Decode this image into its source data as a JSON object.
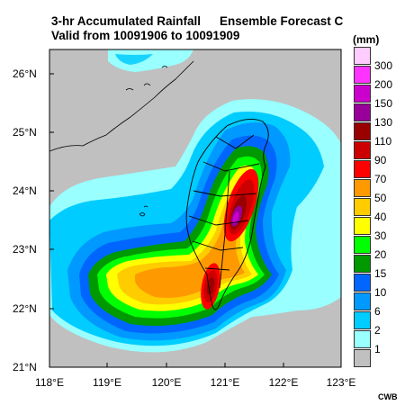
{
  "title": {
    "line1": "3-hr Accumulated Rainfall",
    "line2": "Valid from 10091906 to 10091909",
    "subtitle": "Ensemble Forecast C"
  },
  "map": {
    "region": "Taiwan",
    "lat_range": [
      21,
      26.5
    ],
    "lon_range": [
      118,
      123
    ],
    "lat_labels": [
      "26°N",
      "25°N",
      "24°N",
      "23°N",
      "22°N",
      "21°N"
    ],
    "lon_labels": [
      "118°E",
      "119°E",
      "120°E",
      "121°E",
      "122°E",
      "123°E"
    ],
    "background_color": "#c0c0c0"
  },
  "legend": {
    "unit": "(mm)",
    "levels": [
      {
        "label": "300",
        "color": "#ffccff"
      },
      {
        "label": "200",
        "color": "#ff33ff"
      },
      {
        "label": "150",
        "color": "#cc00cc"
      },
      {
        "label": "130",
        "color": "#990099"
      },
      {
        "label": "110",
        "color": "#990000"
      },
      {
        "label": "90",
        "color": "#cc0000"
      },
      {
        "label": "70",
        "color": "#ff0000"
      },
      {
        "label": "50",
        "color": "#ff9900"
      },
      {
        "label": "40",
        "color": "#ffcc00"
      },
      {
        "label": "30",
        "color": "#ffff00"
      },
      {
        "label": "20",
        "color": "#00ff00"
      },
      {
        "label": "15",
        "color": "#009900"
      },
      {
        "label": "10",
        "color": "#0066ff"
      },
      {
        "label": "6",
        "color": "#0099ff"
      },
      {
        "label": "2",
        "color": "#00ccff"
      },
      {
        "label": "1",
        "color": "#99ffff"
      },
      {
        "label": "",
        "color": "#c0c0c0"
      }
    ]
  },
  "credit": "CWB"
}
